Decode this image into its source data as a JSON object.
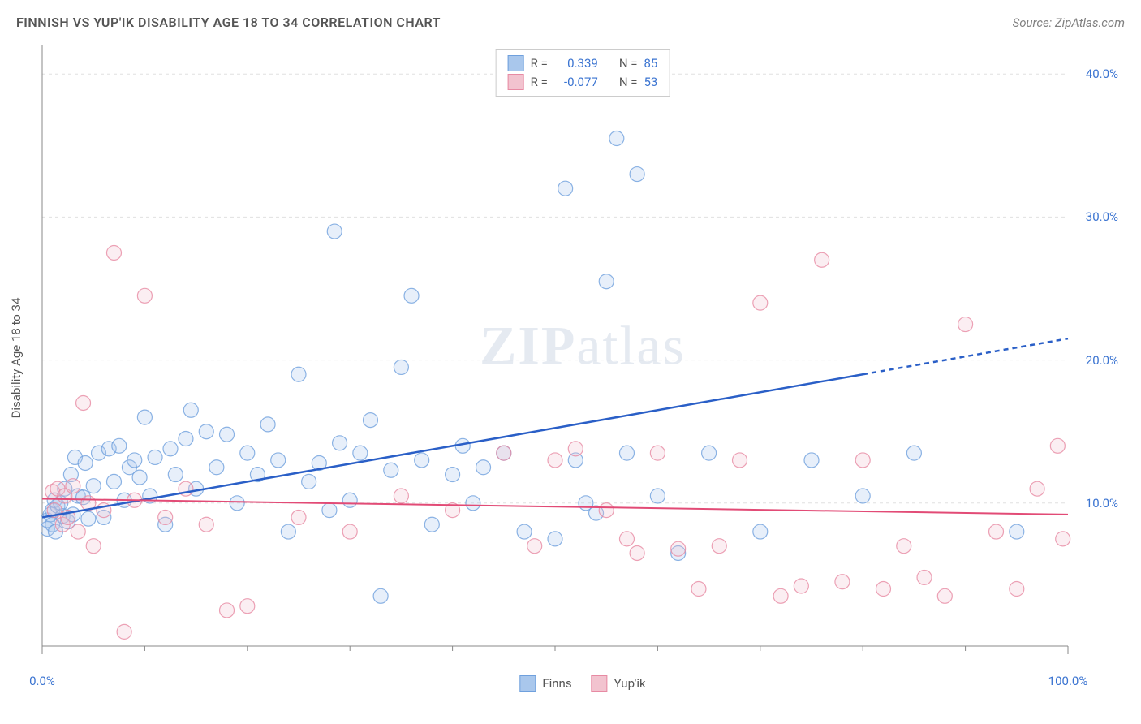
{
  "header": {
    "title": "FINNISH VS YUP'IK DISABILITY AGE 18 TO 34 CORRELATION CHART",
    "source": "Source: ZipAtlas.com"
  },
  "watermark": {
    "bold": "ZIP",
    "light": "atlas"
  },
  "chart": {
    "type": "scatter",
    "y_label": "Disability Age 18 to 34",
    "x_domain": [
      0,
      100
    ],
    "y_domain": [
      0,
      42
    ],
    "x_ticks_major": [
      0,
      100
    ],
    "x_tick_labels": [
      "0.0%",
      "100.0%"
    ],
    "x_ticks_minor": [
      10,
      20,
      30,
      40,
      50,
      60,
      70,
      80,
      90
    ],
    "y_ticks_major": [
      10,
      20,
      30,
      40
    ],
    "y_tick_labels": [
      "10.0%",
      "20.0%",
      "30.0%",
      "40.0%"
    ],
    "background_color": "#ffffff",
    "grid_color": "#e0e0e0",
    "grid_dash": "4,4",
    "axis_color": "#888888",
    "marker_radius": 9,
    "marker_fill_opacity": 0.28,
    "marker_stroke_opacity": 0.8,
    "marker_stroke_width": 1.2,
    "tick_label_color": "#3b74d1",
    "axis_label_color": "#555555",
    "axis_label_fontsize": 15,
    "title_fontsize": 16,
    "series": [
      {
        "name": "Finns",
        "color_fill": "#a9c7ec",
        "color_stroke": "#6fa0dd",
        "R": "0.339",
        "N": "85",
        "trend": {
          "color": "#2a5fc7",
          "width": 2.5,
          "y_at_x0": 9.0,
          "y_at_x100": 21.5,
          "solid_until_x": 80
        },
        "points": [
          [
            0.5,
            8.2
          ],
          [
            0.5,
            8.8
          ],
          [
            0.8,
            9.2
          ],
          [
            1,
            8.5
          ],
          [
            1,
            9.5
          ],
          [
            1.2,
            10.2
          ],
          [
            1.3,
            8.0
          ],
          [
            1.5,
            9.8
          ],
          [
            1.8,
            10.0
          ],
          [
            2,
            9.1
          ],
          [
            2.2,
            11.0
          ],
          [
            2.5,
            8.7
          ],
          [
            2.8,
            12.0
          ],
          [
            3,
            9.2
          ],
          [
            3.2,
            13.2
          ],
          [
            3.5,
            10.5
          ],
          [
            4,
            10.4
          ],
          [
            4.2,
            12.8
          ],
          [
            4.5,
            8.9
          ],
          [
            5,
            11.2
          ],
          [
            5.5,
            13.5
          ],
          [
            6,
            9.0
          ],
          [
            6.5,
            13.8
          ],
          [
            7,
            11.5
          ],
          [
            7.5,
            14.0
          ],
          [
            8,
            10.2
          ],
          [
            8.5,
            12.5
          ],
          [
            9,
            13.0
          ],
          [
            9.5,
            11.8
          ],
          [
            10,
            16.0
          ],
          [
            10.5,
            10.5
          ],
          [
            11,
            13.2
          ],
          [
            12,
            8.5
          ],
          [
            12.5,
            13.8
          ],
          [
            13,
            12.0
          ],
          [
            14,
            14.5
          ],
          [
            14.5,
            16.5
          ],
          [
            15,
            11.0
          ],
          [
            16,
            15.0
          ],
          [
            17,
            12.5
          ],
          [
            18,
            14.8
          ],
          [
            19,
            10.0
          ],
          [
            20,
            13.5
          ],
          [
            21,
            12.0
          ],
          [
            22,
            15.5
          ],
          [
            23,
            13.0
          ],
          [
            24,
            8.0
          ],
          [
            25,
            19.0
          ],
          [
            26,
            11.5
          ],
          [
            27,
            12.8
          ],
          [
            28,
            9.5
          ],
          [
            28.5,
            29.0
          ],
          [
            29,
            14.2
          ],
          [
            30,
            10.2
          ],
          [
            31,
            13.5
          ],
          [
            32,
            15.8
          ],
          [
            33,
            3.5
          ],
          [
            34,
            12.3
          ],
          [
            35,
            19.5
          ],
          [
            36,
            24.5
          ],
          [
            37,
            13.0
          ],
          [
            38,
            8.5
          ],
          [
            40,
            12.0
          ],
          [
            41,
            14.0
          ],
          [
            42,
            10.0
          ],
          [
            43,
            12.5
          ],
          [
            45,
            13.5
          ],
          [
            47,
            8.0
          ],
          [
            50,
            7.5
          ],
          [
            51,
            32.0
          ],
          [
            52,
            13.0
          ],
          [
            53,
            10.0
          ],
          [
            54,
            9.3
          ],
          [
            55,
            25.5
          ],
          [
            56,
            35.5
          ],
          [
            57,
            13.5
          ],
          [
            58,
            33.0
          ],
          [
            60,
            10.5
          ],
          [
            62,
            6.5
          ],
          [
            65,
            13.5
          ],
          [
            70,
            8.0
          ],
          [
            75,
            13.0
          ],
          [
            80,
            10.5
          ],
          [
            85,
            13.5
          ],
          [
            95,
            8.0
          ]
        ]
      },
      {
        "name": "Yup'ik",
        "color_fill": "#f2c3cf",
        "color_stroke": "#e78aa3",
        "R": "-0.077",
        "N": "53",
        "trend": {
          "color": "#e24b76",
          "width": 2,
          "y_at_x0": 10.3,
          "y_at_x100": 9.2,
          "solid_until_x": 100
        },
        "points": [
          [
            1,
            10.8
          ],
          [
            1.2,
            9.5
          ],
          [
            1.5,
            11.0
          ],
          [
            2,
            8.5
          ],
          [
            2.2,
            10.5
          ],
          [
            2.5,
            9.0
          ],
          [
            3,
            11.2
          ],
          [
            3.5,
            8.0
          ],
          [
            4,
            17.0
          ],
          [
            4.5,
            10.0
          ],
          [
            5,
            7.0
          ],
          [
            6,
            9.5
          ],
          [
            7,
            27.5
          ],
          [
            8,
            1.0
          ],
          [
            9,
            10.2
          ],
          [
            10,
            24.5
          ],
          [
            12,
            9.0
          ],
          [
            14,
            11.0
          ],
          [
            16,
            8.5
          ],
          [
            18,
            2.5
          ],
          [
            20,
            2.8
          ],
          [
            25,
            9.0
          ],
          [
            30,
            8.0
          ],
          [
            35,
            10.5
          ],
          [
            40,
            9.5
          ],
          [
            45,
            13.5
          ],
          [
            48,
            7.0
          ],
          [
            50,
            13.0
          ],
          [
            52,
            13.8
          ],
          [
            55,
            9.5
          ],
          [
            57,
            7.5
          ],
          [
            58,
            6.5
          ],
          [
            60,
            13.5
          ],
          [
            62,
            6.8
          ],
          [
            64,
            4.0
          ],
          [
            66,
            7.0
          ],
          [
            68,
            13.0
          ],
          [
            70,
            24.0
          ],
          [
            72,
            3.5
          ],
          [
            74,
            4.2
          ],
          [
            76,
            27.0
          ],
          [
            78,
            4.5
          ],
          [
            80,
            13.0
          ],
          [
            82,
            4.0
          ],
          [
            84,
            7.0
          ],
          [
            86,
            4.8
          ],
          [
            88,
            3.5
          ],
          [
            90,
            22.5
          ],
          [
            93,
            8.0
          ],
          [
            95,
            4.0
          ],
          [
            97,
            11.0
          ],
          [
            99,
            14.0
          ],
          [
            99.5,
            7.5
          ]
        ]
      }
    ],
    "legend_top": {
      "border_color": "#cccccc",
      "r_label": "R =",
      "n_label": "N =",
      "value_color": "#3b74d1"
    },
    "legend_bottom": [
      {
        "label": "Finns",
        "fill": "#a9c7ec",
        "stroke": "#6fa0dd"
      },
      {
        "label": "Yup'ik",
        "fill": "#f2c3cf",
        "stroke": "#e78aa3"
      }
    ]
  }
}
